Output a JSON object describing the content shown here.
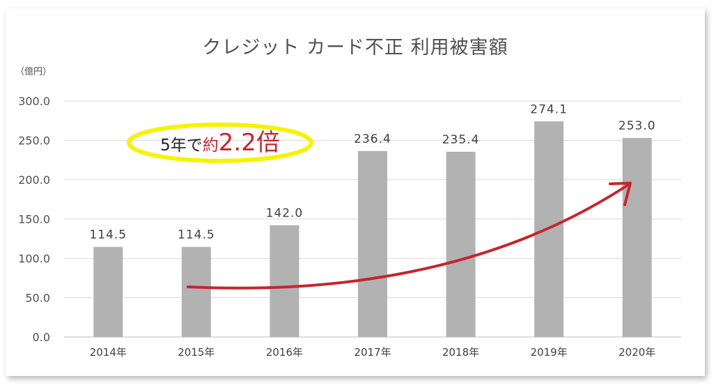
{
  "chart_data": {
    "type": "bar",
    "title": "クレジット カード不正 利用被害額",
    "unit_label": "（億円）",
    "categories": [
      "2014年",
      "2015年",
      "2016年",
      "2017年",
      "2018年",
      "2019年",
      "2020年"
    ],
    "values": [
      114.5,
      114.5,
      142.0,
      236.4,
      235.4,
      274.1,
      253.0
    ],
    "data_labels": [
      "114.5",
      "114.5",
      "142.0",
      "236.4",
      "235.4",
      "274.1",
      "253.0"
    ],
    "ylim": [
      0,
      300
    ],
    "yticks": [
      "0.0",
      "50.0",
      "100.0",
      "150.0",
      "200.0",
      "250.0",
      "300.0"
    ],
    "grid": true,
    "bar_color": "#b2b2b2",
    "annotation": {
      "text_prefix": "5年で",
      "text_yaku": "約",
      "text_value": "2.2倍",
      "ellipse_color": "#f6f200",
      "arrow_color": "#c4262e"
    }
  }
}
